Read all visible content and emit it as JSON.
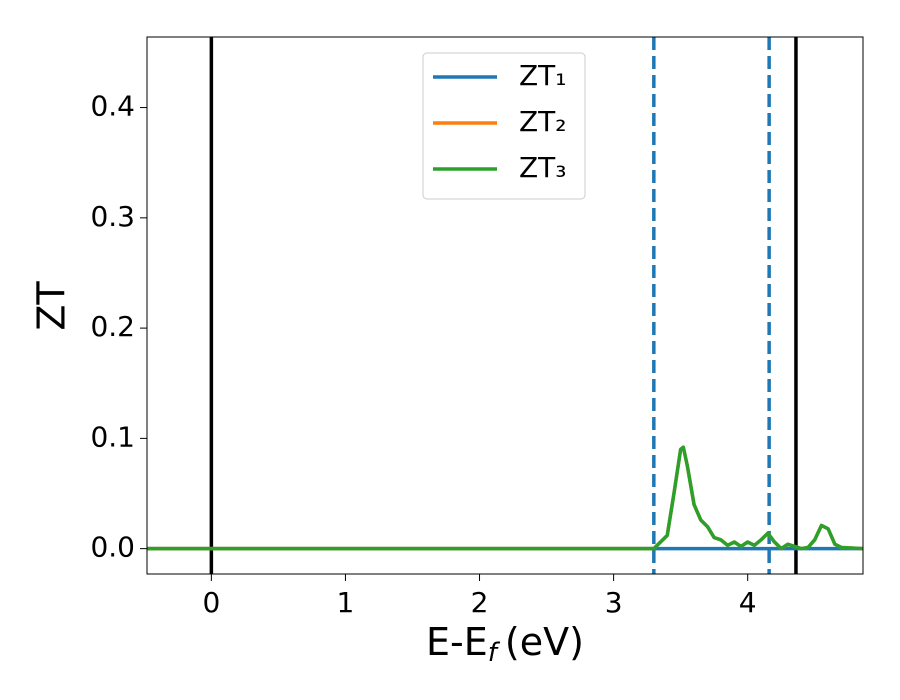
{
  "chart_data": {
    "type": "line",
    "x_label": {
      "main": "E-E",
      "sub": "f",
      "unit": "(eV)"
    },
    "y_label": "ZT",
    "x": [
      -0.48,
      3.3,
      3.4,
      3.45,
      3.5,
      3.52,
      3.55,
      3.6,
      3.65,
      3.7,
      3.75,
      3.8,
      3.85,
      3.9,
      3.95,
      4.0,
      4.05,
      4.1,
      4.15,
      4.2,
      4.25,
      4.3,
      4.35,
      4.4,
      4.45,
      4.5,
      4.55,
      4.6,
      4.65,
      4.7,
      4.86
    ],
    "series": [
      {
        "name": "ZT₁",
        "color": "#1f77b4",
        "values": [
          0,
          0,
          0,
          0,
          0,
          0,
          0,
          0,
          0,
          0,
          0,
          0,
          0,
          0,
          0,
          0,
          0,
          0,
          0,
          0,
          0,
          0,
          0,
          0,
          0,
          0,
          0,
          0,
          0,
          0,
          0
        ]
      },
      {
        "name": "ZT₂",
        "color": "#ff7f0e",
        "values": [
          0,
          0,
          0.012,
          0.05,
          0.09,
          0.092,
          0.075,
          0.04,
          0.026,
          0.02,
          0.01,
          0.008,
          0.003,
          0.006,
          0.002,
          0.006,
          0.003,
          0.008,
          0.014,
          0.006,
          0,
          0.004,
          0.002,
          0,
          0.001,
          0.008,
          0.021,
          0.018,
          0.004,
          0.001,
          0
        ]
      },
      {
        "name": "ZT₃",
        "color": "#2ca02c",
        "values": [
          0,
          0,
          0.012,
          0.05,
          0.09,
          0.092,
          0.075,
          0.04,
          0.026,
          0.02,
          0.01,
          0.008,
          0.003,
          0.006,
          0.002,
          0.006,
          0.003,
          0.008,
          0.014,
          0.006,
          0,
          0.004,
          0.002,
          0,
          0.001,
          0.008,
          0.021,
          0.018,
          0.004,
          0.001,
          0
        ]
      }
    ],
    "vlines": [
      {
        "x": 0,
        "color": "#000000",
        "dashed": false
      },
      {
        "x": 4.36,
        "color": "#000000",
        "dashed": false
      },
      {
        "x": 3.3,
        "color": "#1f77b4",
        "dashed": true
      },
      {
        "x": 4.16,
        "color": "#1f77b4",
        "dashed": true
      }
    ],
    "xlim": [
      -0.48,
      4.86
    ],
    "ylim": [
      -0.023,
      0.464
    ],
    "xticks": [
      0,
      1,
      2,
      3,
      4
    ],
    "yticks": [
      {
        "value": 0,
        "label": "0.0"
      },
      0.1,
      0.2,
      0.3,
      0.4
    ],
    "legend": "upper center",
    "grid": false
  }
}
